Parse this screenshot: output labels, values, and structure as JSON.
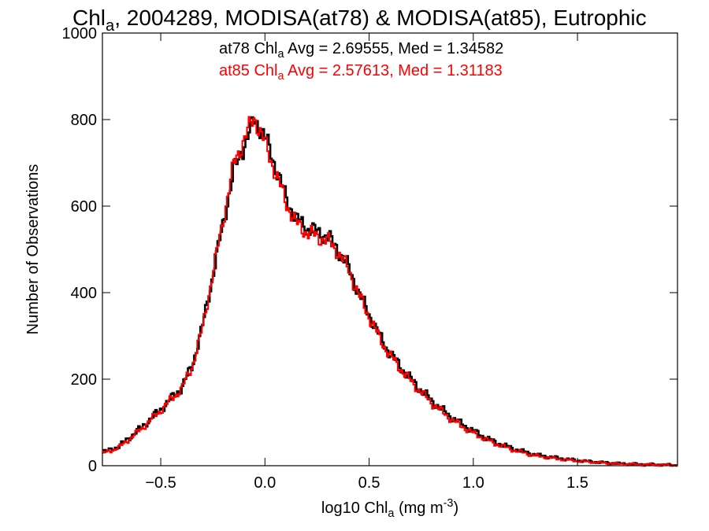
{
  "chart_data": {
    "type": "line",
    "step": true,
    "title": {
      "pre": "Chl",
      "sub": "a",
      "post": ", 2004289, MODISA(at78) & MODISA(at85), Eutrophic"
    },
    "stats": [
      {
        "pre": "at78 Chl",
        "sub": "a",
        "post": " Avg = 2.69555, Med = 1.34582",
        "color": "#000000"
      },
      {
        "pre": "at85 Chl",
        "sub": "a",
        "post": " Avg = 2.57613, Med = 1.31183",
        "color": "#ff0000"
      }
    ],
    "xlabel": {
      "pre": "log10 Chl",
      "sub": "a",
      "mid": " (mg m",
      "sup": "-3",
      "post": ")"
    },
    "ylabel": "Number of Observations",
    "xlim": [
      -0.78,
      1.98
    ],
    "ylim": [
      0,
      1000
    ],
    "xticks": [
      -0.5,
      0.0,
      0.5,
      1.0,
      1.5
    ],
    "xtick_labels": [
      "−0.5",
      "0.0",
      "0.5",
      "1.0",
      "1.5"
    ],
    "yticks": [
      0,
      200,
      400,
      600,
      800,
      1000
    ],
    "ytick_labels": [
      "0",
      "200",
      "400",
      "600",
      "800",
      "1000"
    ],
    "grid": false,
    "series": [
      {
        "color": "#000000",
        "x": [
          -0.78,
          -0.7,
          -0.6,
          -0.5,
          -0.4,
          -0.35,
          -0.3,
          -0.25,
          -0.2,
          -0.15,
          -0.1,
          -0.05,
          -0.02,
          0.0,
          0.03,
          0.06,
          0.1,
          0.15,
          0.2,
          0.25,
          0.3,
          0.35,
          0.4,
          0.45,
          0.5,
          0.55,
          0.6,
          0.7,
          0.8,
          0.9,
          1.0,
          1.1,
          1.2,
          1.3,
          1.4,
          1.5,
          1.6,
          1.7,
          1.8,
          1.9,
          1.98
        ],
        "y": [
          30,
          45,
          85,
          130,
          180,
          230,
          320,
          440,
          560,
          680,
          740,
          800,
          780,
          760,
          720,
          680,
          620,
          570,
          550,
          540,
          530,
          500,
          460,
          400,
          350,
          300,
          260,
          200,
          150,
          110,
          80,
          55,
          38,
          25,
          18,
          12,
          8,
          5,
          3,
          2,
          1
        ]
      },
      {
        "color": "#ff0000",
        "x": [
          -0.78,
          -0.7,
          -0.6,
          -0.5,
          -0.4,
          -0.35,
          -0.3,
          -0.25,
          -0.2,
          -0.15,
          -0.1,
          -0.05,
          -0.02,
          0.0,
          0.03,
          0.06,
          0.1,
          0.15,
          0.2,
          0.25,
          0.3,
          0.35,
          0.4,
          0.45,
          0.5,
          0.55,
          0.6,
          0.7,
          0.8,
          0.9,
          1.0,
          1.1,
          1.2,
          1.3,
          1.4,
          1.5,
          1.6,
          1.7,
          1.8,
          1.9,
          1.98
        ],
        "y": [
          28,
          42,
          82,
          128,
          178,
          228,
          318,
          445,
          570,
          695,
          755,
          805,
          770,
          745,
          705,
          665,
          610,
          560,
          540,
          530,
          520,
          495,
          455,
          395,
          345,
          295,
          255,
          195,
          145,
          105,
          75,
          52,
          35,
          23,
          16,
          11,
          7,
          4,
          3,
          2,
          1
        ]
      }
    ]
  }
}
